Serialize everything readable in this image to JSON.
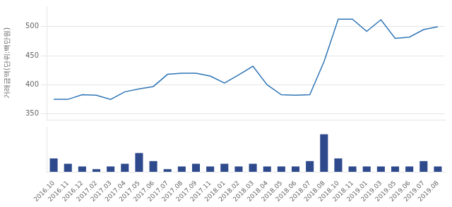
{
  "chart_data": [
    {
      "type": "line",
      "categories": [
        "2016.10",
        "2016.11",
        "2016.12",
        "2017.02",
        "2017.03",
        "2017.04",
        "2017.05",
        "2017.06",
        "2017.07",
        "2017.08",
        "2017.09",
        "2017.11",
        "2018.01",
        "2018.02",
        "2018.03",
        "2018.04",
        "2018.05",
        "2018.06",
        "2018.07",
        "2018.08",
        "2018.10",
        "2018.11",
        "2019.01",
        "2019.03",
        "2019.05",
        "2019.06",
        "2019.07",
        "2019.08"
      ],
      "values": [
        375,
        375,
        383,
        382,
        375,
        388,
        393,
        397,
        418,
        420,
        420,
        415,
        403,
        417,
        432,
        400,
        383,
        382,
        383,
        440,
        513,
        513,
        492,
        512,
        480,
        482,
        495,
        500
      ],
      "color": "#2e75b6",
      "ylabel": "거래금액(단위:백만원)",
      "ylim": [
        340,
        535
      ],
      "yticks": [
        350,
        400,
        450,
        500
      ],
      "grid": true,
      "tick_labels": "y"
    },
    {
      "type": "bar",
      "categories": [
        "2016.10",
        "2016.11",
        "2016.12",
        "2017.02",
        "2017.03",
        "2017.04",
        "2017.05",
        "2017.06",
        "2017.07",
        "2017.08",
        "2017.09",
        "2017.11",
        "2018.01",
        "2018.02",
        "2018.03",
        "2018.04",
        "2018.05",
        "2018.06",
        "2018.07",
        "2018.08",
        "2018.10",
        "2018.11",
        "2019.01",
        "2019.03",
        "2019.05",
        "2019.06",
        "2019.07",
        "2019.08"
      ],
      "values": [
        5,
        3,
        2,
        1,
        2,
        3,
        7,
        4,
        1,
        2,
        3,
        2,
        3,
        2,
        3,
        2,
        2,
        2,
        4,
        14,
        5,
        2,
        2,
        2,
        2,
        2,
        4,
        2
      ],
      "color": "#2e4a8c",
      "ylim": [
        0,
        16.8
      ],
      "grid": false,
      "tick_labels": "x"
    }
  ]
}
